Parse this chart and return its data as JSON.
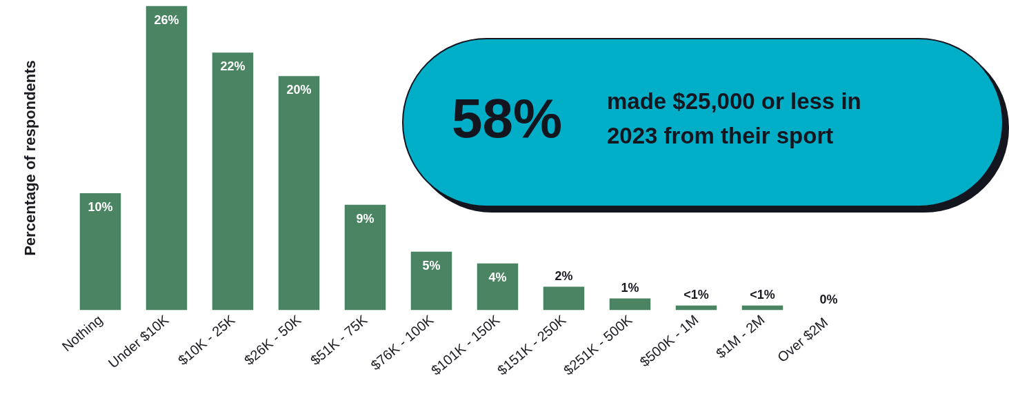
{
  "chart_data": {
    "type": "bar",
    "ylabel": "Percentage of respondents",
    "categories": [
      "Nothing",
      "Under $10K",
      "$10K - 25K",
      "$26K - 50K",
      "$51K - 75K",
      "$76K - 100K",
      "$101K - 150K",
      "$151K - 250K",
      "$251K - 500K",
      "$500K - 1M",
      "$1M - 2M",
      "Over  $2M"
    ],
    "values": [
      10,
      26,
      22,
      20,
      9,
      5,
      4,
      2,
      1,
      0.4,
      0.4,
      0
    ],
    "value_labels": [
      "10%",
      "26%",
      "22%",
      "20%",
      "9%",
      "5%",
      "4%",
      "2%",
      "1%",
      "<1%",
      "<1%",
      "0%"
    ],
    "color": "#4a8462",
    "grid": false,
    "annotations": [
      "58%",
      "made $25,000 or less in 2023 from their sport"
    ]
  }
}
